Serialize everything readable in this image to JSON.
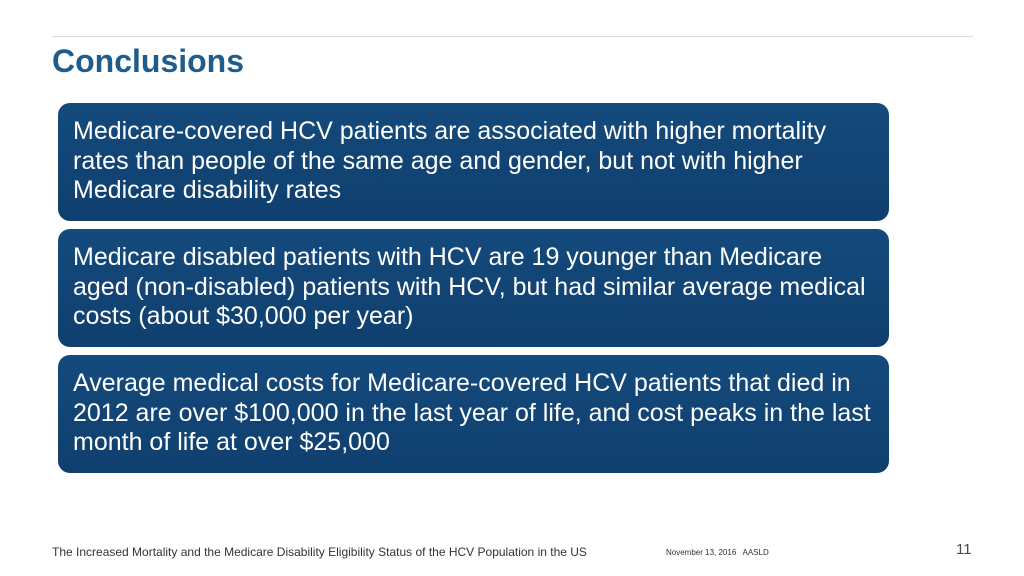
{
  "slide": {
    "title": "Conclusions",
    "boxes": [
      {
        "text": "Medicare-covered HCV patients are associated with higher mortality rates than people of the same age and gender, but not with higher Medicare disability rates"
      },
      {
        "text": "Medicare disabled patients with HCV are 19 younger than Medicare aged (non-disabled) patients with HCV, but had similar average medical costs (about $30,000 per year)"
      },
      {
        "text": "Average medical costs for Medicare-covered HCV patients that died in 2012 are over $100,000 in the last year of life, and cost peaks in the last month of life at over $25,000"
      }
    ],
    "box_color": "#104272",
    "title_color": "#1f5c8b"
  },
  "footer": {
    "presentation_title": "The Increased Mortality and the Medicare Disability Eligibility Status of the HCV Population in the US",
    "date": "November 13, 2016",
    "event": "AASLD",
    "page_number": "11"
  }
}
